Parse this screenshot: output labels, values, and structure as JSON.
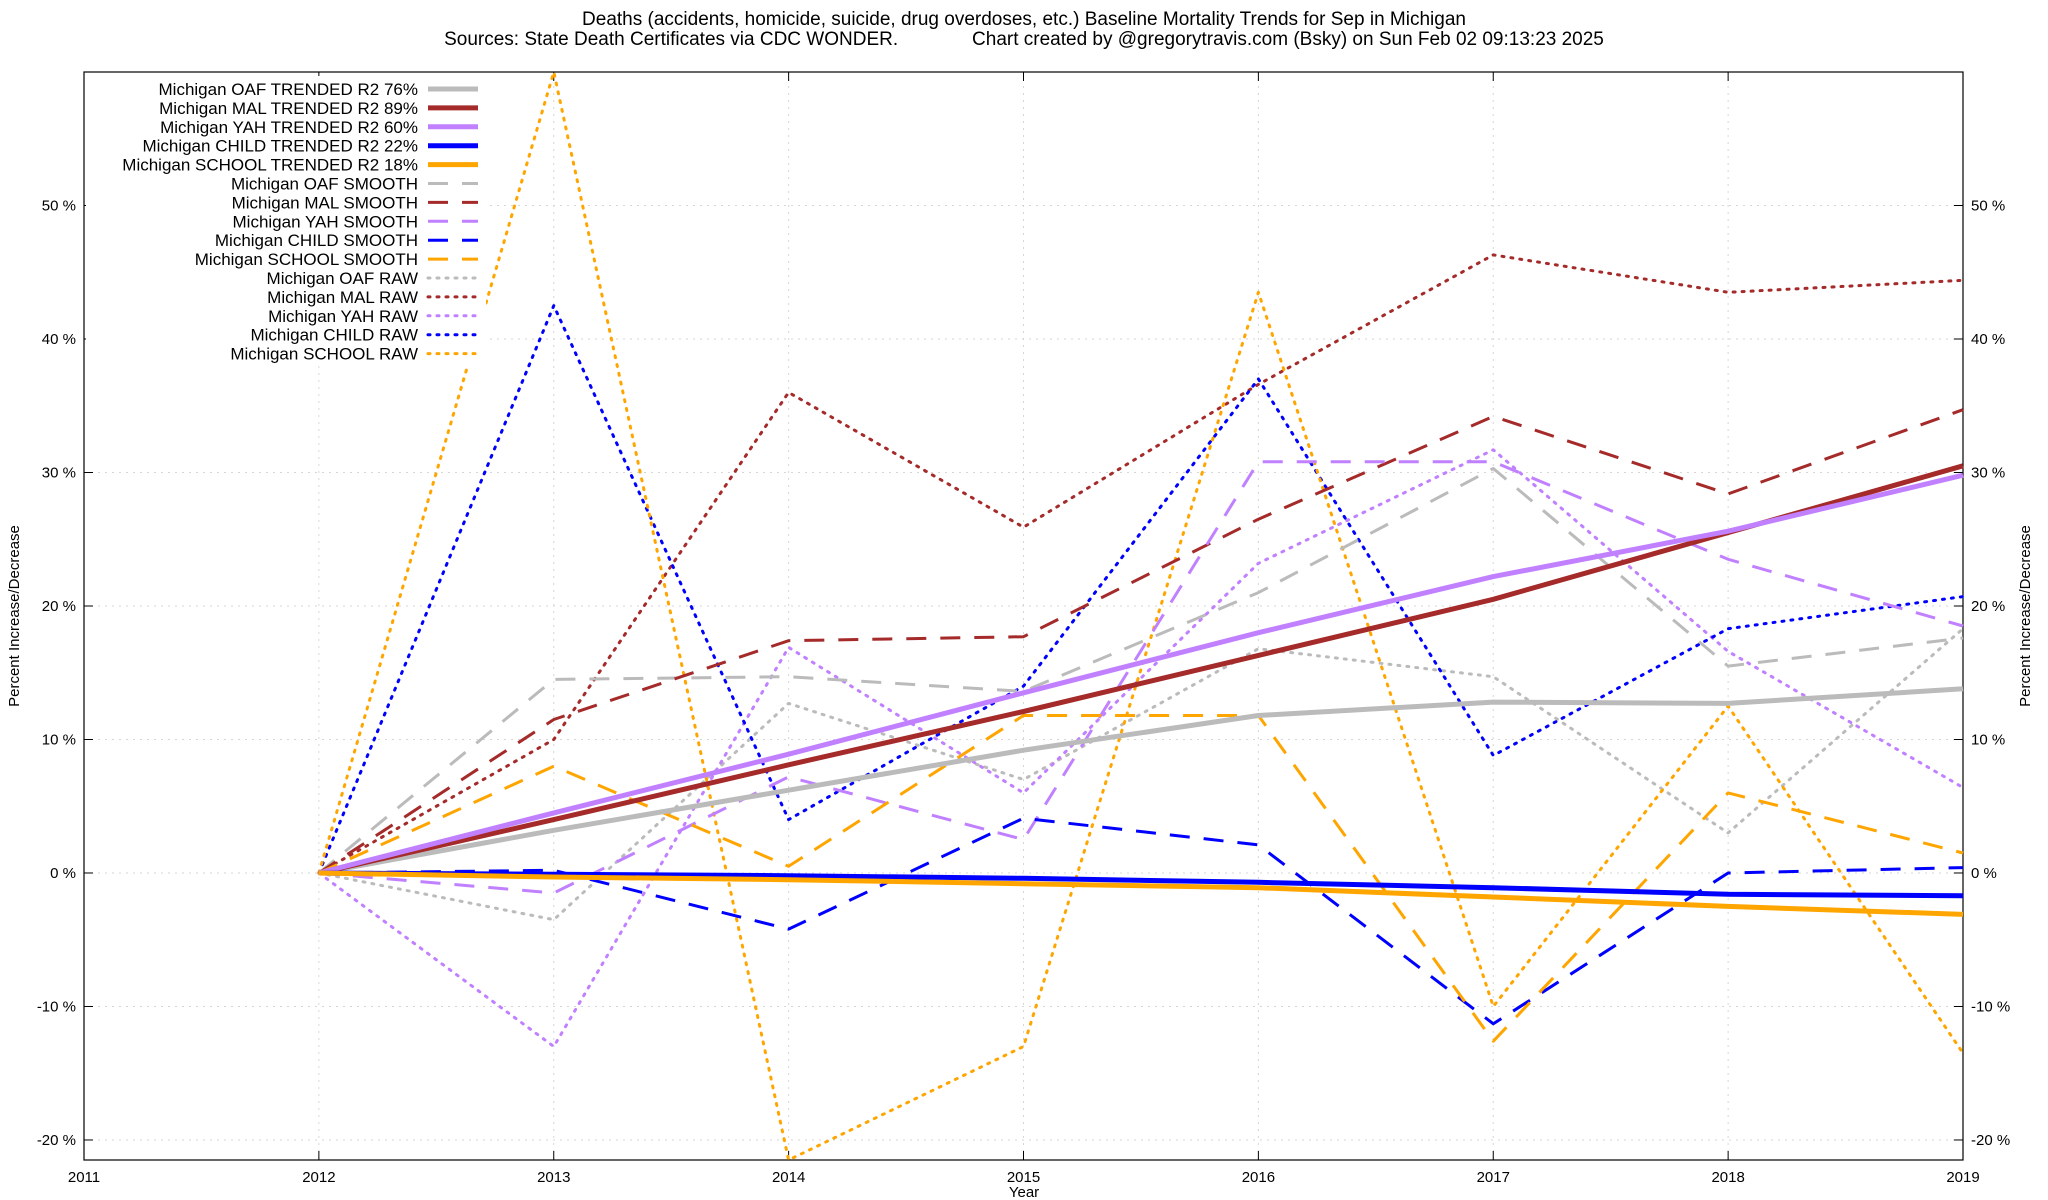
{
  "chart_data": {
    "type": "line",
    "title": "Deaths (accidents, homicide, suicide, drug overdoses, etc.)  Baseline Mortality Trends for Sep in Michigan",
    "subtitle": "Sources: State Death Certificates via CDC WONDER.              Chart created by @gregorytravis.com (Bsky) on Sun Feb 02 09:13:23 2025",
    "xlabel": "Year",
    "ylabel": "Percent Increase/Decrease",
    "xlim": [
      2011,
      2019
    ],
    "ylim": [
      -21.5,
      60
    ],
    "x_ticks": [
      "2011",
      "2012",
      "2013",
      "2014",
      "2015",
      "2016",
      "2017",
      "2018",
      "2019"
    ],
    "y_ticks": [
      {
        "value": -20,
        "label": "-20 %"
      },
      {
        "value": -10,
        "label": "-10 %"
      },
      {
        "value": 0,
        "label": "0 %"
      },
      {
        "value": 10,
        "label": "10 %"
      },
      {
        "value": 20,
        "label": "20 %"
      },
      {
        "value": 30,
        "label": "30 %"
      },
      {
        "value": 40,
        "label": "40 %"
      },
      {
        "value": 50,
        "label": "50 %"
      }
    ],
    "grid": true,
    "legend_position": "top-left",
    "x": [
      2012,
      2013,
      2014,
      2015,
      2016,
      2017,
      2018,
      2019
    ],
    "series": [
      {
        "name": "Michigan OAF TRENDED R2  76%",
        "style": "solid",
        "color": "#bbbbbb",
        "values": [
          0,
          3.2,
          6.2,
          9.2,
          11.8,
          12.8,
          12.7,
          13.8
        ]
      },
      {
        "name": "Michigan MAL TRENDED R2  89%",
        "style": "solid",
        "color": "#a52a2a",
        "values": [
          0,
          4.0,
          8.1,
          12.1,
          16.3,
          20.5,
          25.5,
          30.5
        ]
      },
      {
        "name": "Michigan YAH TRENDED R2  60%",
        "style": "solid",
        "color": "#c080ff",
        "values": [
          0,
          4.5,
          8.9,
          13.5,
          18.0,
          22.2,
          25.6,
          29.8
        ]
      },
      {
        "name": "Michigan CHILD TRENDED R2  22%",
        "style": "solid",
        "color": "#0000ff",
        "values": [
          0,
          -0.1,
          -0.2,
          -0.4,
          -0.7,
          -1.1,
          -1.6,
          -1.7
        ]
      },
      {
        "name": "Michigan SCHOOL TRENDED R2  18%",
        "style": "solid",
        "color": "#ffa500",
        "values": [
          0,
          -0.3,
          -0.5,
          -0.8,
          -1.1,
          -1.8,
          -2.5,
          -3.1
        ]
      },
      {
        "name": "Michigan OAF SMOOTH",
        "style": "dashed",
        "color": "#bbbbbb",
        "values": [
          0,
          14.5,
          14.7,
          13.6,
          21.0,
          30.3,
          15.5,
          17.6
        ]
      },
      {
        "name": "Michigan MAL SMOOTH",
        "style": "dashed",
        "color": "#a52a2a",
        "values": [
          0,
          11.5,
          17.4,
          17.7,
          26.5,
          34.2,
          28.4,
          34.7
        ]
      },
      {
        "name": "Michigan YAH SMOOTH",
        "style": "dashed",
        "color": "#c080ff",
        "values": [
          0,
          -1.5,
          7.2,
          2.5,
          30.8,
          30.8,
          23.5,
          18.5
        ]
      },
      {
        "name": "Michigan CHILD SMOOTH",
        "style": "dashed",
        "color": "#0000ff",
        "values": [
          0,
          0.2,
          -4.2,
          4.1,
          2.1,
          -11.3,
          0.0,
          0.4
        ]
      },
      {
        "name": "Michigan SCHOOL SMOOTH",
        "style": "dashed",
        "color": "#ffa500",
        "values": [
          0,
          8.0,
          0.5,
          11.8,
          11.8,
          -12.6,
          6.0,
          1.5
        ]
      },
      {
        "name": "Michigan OAF RAW",
        "style": "dotted",
        "color": "#bbbbbb",
        "values": [
          0,
          -3.5,
          12.7,
          7.0,
          16.8,
          14.7,
          3.0,
          18.3
        ]
      },
      {
        "name": "Michigan MAL RAW",
        "style": "dotted",
        "color": "#a52a2a",
        "values": [
          0,
          10.0,
          36.0,
          25.9,
          36.6,
          46.3,
          43.5,
          44.4
        ]
      },
      {
        "name": "Michigan YAH RAW",
        "style": "dotted",
        "color": "#c080ff",
        "values": [
          0,
          -13.0,
          16.9,
          6.0,
          23.2,
          31.7,
          16.6,
          6.4
        ]
      },
      {
        "name": "Michigan CHILD RAW",
        "style": "dotted",
        "color": "#0000ff",
        "values": [
          0,
          42.5,
          4.0,
          14.0,
          37.0,
          8.8,
          18.3,
          20.7
        ]
      },
      {
        "name": "Michigan SCHOOL RAW",
        "style": "dotted",
        "color": "#ffa500",
        "values": [
          0,
          60.0,
          -21.5,
          -13.0,
          43.5,
          -10.0,
          12.5,
          -13.5
        ]
      }
    ]
  }
}
